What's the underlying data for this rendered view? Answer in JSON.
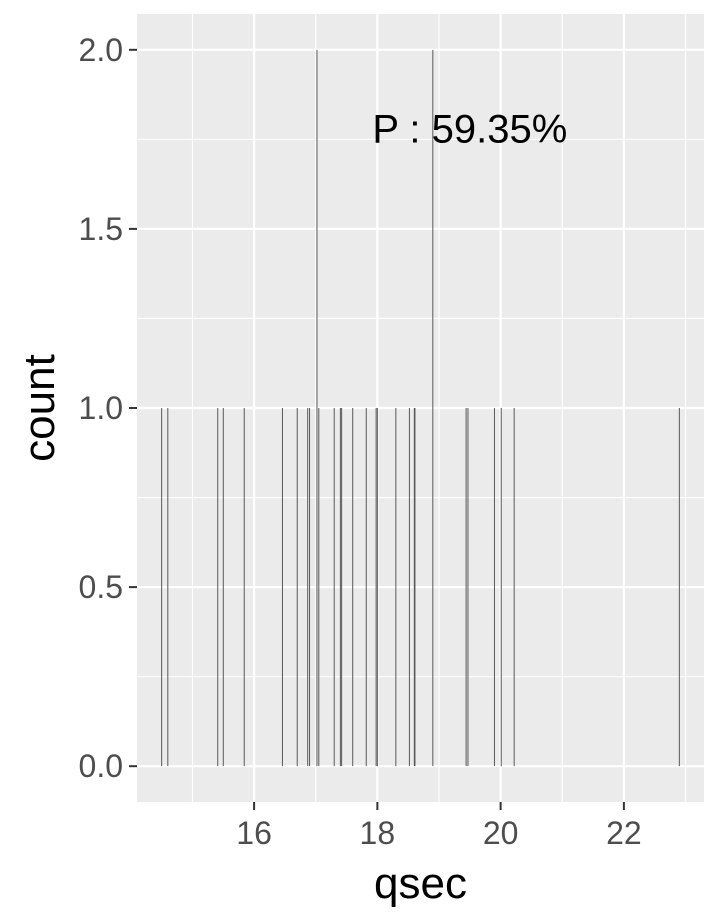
{
  "chart_data": {
    "type": "bar",
    "title": "",
    "xlabel": "qsec",
    "ylabel": "count",
    "xlim": [
      14.1,
      23.3
    ],
    "ylim": [
      -0.1,
      2.1
    ],
    "x_ticks": [
      16,
      18,
      20,
      22
    ],
    "x_tick_labels": [
      "16",
      "18",
      "20",
      "22"
    ],
    "y_ticks": [
      0.0,
      0.5,
      1.0,
      1.5,
      2.0
    ],
    "y_tick_labels": [
      "0.0",
      "0.5",
      "1.0",
      "1.5",
      "2.0"
    ],
    "grid": true,
    "bars": [
      {
        "x": 14.5,
        "count": 1
      },
      {
        "x": 14.6,
        "count": 1
      },
      {
        "x": 15.41,
        "count": 1
      },
      {
        "x": 15.5,
        "count": 1
      },
      {
        "x": 15.84,
        "count": 1
      },
      {
        "x": 16.46,
        "count": 1
      },
      {
        "x": 16.7,
        "count": 1
      },
      {
        "x": 16.87,
        "count": 1
      },
      {
        "x": 16.9,
        "count": 1
      },
      {
        "x": 17.02,
        "count": 2
      },
      {
        "x": 17.05,
        "count": 1
      },
      {
        "x": 17.3,
        "count": 1
      },
      {
        "x": 17.4,
        "count": 1
      },
      {
        "x": 17.42,
        "count": 1
      },
      {
        "x": 17.6,
        "count": 1
      },
      {
        "x": 17.82,
        "count": 1
      },
      {
        "x": 17.98,
        "count": 1
      },
      {
        "x": 18.0,
        "count": 1
      },
      {
        "x": 18.3,
        "count": 1
      },
      {
        "x": 18.52,
        "count": 1
      },
      {
        "x": 18.6,
        "count": 1
      },
      {
        "x": 18.61,
        "count": 1
      },
      {
        "x": 18.9,
        "count": 2
      },
      {
        "x": 19.44,
        "count": 1
      },
      {
        "x": 19.47,
        "count": 1
      },
      {
        "x": 19.9,
        "count": 1
      },
      {
        "x": 20.01,
        "count": 1
      },
      {
        "x": 20.22,
        "count": 1
      },
      {
        "x": 22.9,
        "count": 1
      }
    ],
    "annotation": {
      "text": "P : 59.35%",
      "x": 19.5,
      "y": 1.78
    },
    "colors": {
      "panel": "#ebebeb",
      "grid_major": "#ffffff",
      "bar": "#595959"
    }
  }
}
